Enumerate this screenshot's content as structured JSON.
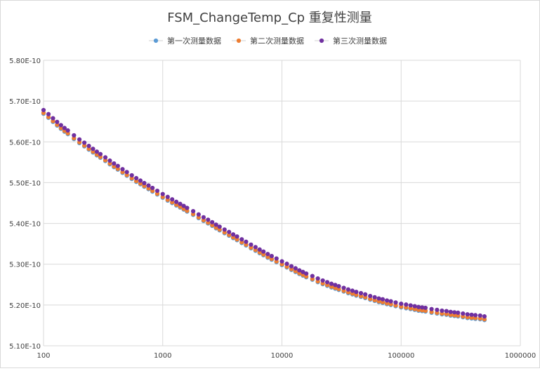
{
  "chart_data": {
    "type": "scatter",
    "title": "FSM_ChangeTemp_Cp 重复性测量",
    "xscale": "log",
    "xlim": [
      100,
      1000000
    ],
    "ylim": [
      5.1e-10,
      5.8e-10
    ],
    "xticks": [
      "100",
      "1000",
      "10000",
      "100000",
      "1000000"
    ],
    "yticks": [
      "5.10E-10",
      "5.20E-10",
      "5.30E-10",
      "5.40E-10",
      "5.50E-10",
      "5.60E-10",
      "5.70E-10",
      "5.80E-10"
    ],
    "grid": true,
    "legend_position": "top",
    "x": [
      100,
      110,
      120,
      130,
      140,
      150,
      160,
      180,
      200,
      220,
      240,
      260,
      280,
      300,
      330,
      360,
      390,
      420,
      460,
      500,
      550,
      600,
      650,
      700,
      760,
      820,
      900,
      1000,
      1100,
      1200,
      1300,
      1400,
      1500,
      1600,
      1800,
      2000,
      2200,
      2400,
      2600,
      2800,
      3000,
      3300,
      3600,
      3900,
      4200,
      4600,
      5000,
      5500,
      6000,
      6500,
      7000,
      7600,
      8200,
      9000,
      10000,
      11000,
      12000,
      13000,
      14000,
      15000,
      16000,
      18000,
      20000,
      22000,
      24000,
      26000,
      28000,
      30000,
      33000,
      36000,
      39000,
      42000,
      46000,
      50000,
      55000,
      60000,
      65000,
      70000,
      76000,
      82000,
      90000,
      100000,
      110000,
      120000,
      130000,
      140000,
      150000,
      160000,
      180000,
      200000,
      220000,
      240000,
      260000,
      280000,
      300000,
      330000,
      360000,
      390000,
      420000,
      460000,
      500000
    ],
    "series": [
      {
        "name": "第一次测量数据",
        "color": "#5b9bd5",
        "values": [
          5.669e-10,
          5.659e-10,
          5.649e-10,
          5.64e-10,
          5.632e-10,
          5.625e-10,
          5.619e-10,
          5.607e-10,
          5.597e-10,
          5.589e-10,
          5.581e-10,
          5.574e-10,
          5.567e-10,
          5.561e-10,
          5.553e-10,
          5.545e-10,
          5.538e-10,
          5.532e-10,
          5.524e-10,
          5.517e-10,
          5.509e-10,
          5.502e-10,
          5.496e-10,
          5.49e-10,
          5.484e-10,
          5.478e-10,
          5.471e-10,
          5.463e-10,
          5.456e-10,
          5.45e-10,
          5.444e-10,
          5.439e-10,
          5.434e-10,
          5.429e-10,
          5.421e-10,
          5.413e-10,
          5.406e-10,
          5.4e-10,
          5.394e-10,
          5.388e-10,
          5.383e-10,
          5.376e-10,
          5.37e-10,
          5.364e-10,
          5.359e-10,
          5.352e-10,
          5.346e-10,
          5.339e-10,
          5.333e-10,
          5.327e-10,
          5.322e-10,
          5.316e-10,
          5.311e-10,
          5.305e-10,
          5.298e-10,
          5.292e-10,
          5.286e-10,
          5.281e-10,
          5.276e-10,
          5.272e-10,
          5.268e-10,
          5.262e-10,
          5.256e-10,
          5.251e-10,
          5.247e-10,
          5.243e-10,
          5.24e-10,
          5.237e-10,
          5.233e-10,
          5.229e-10,
          5.226e-10,
          5.223e-10,
          5.22e-10,
          5.217e-10,
          5.213e-10,
          5.21e-10,
          5.207e-10,
          5.205e-10,
          5.202e-10,
          5.2e-10,
          5.197e-10,
          5.194e-10,
          5.192e-10,
          5.19e-10,
          5.188e-10,
          5.186e-10,
          5.185e-10,
          5.184e-10,
          5.181e-10,
          5.179e-10,
          5.177e-10,
          5.176e-10,
          5.174e-10,
          5.173e-10,
          5.172e-10,
          5.17e-10,
          5.168e-10,
          5.167e-10,
          5.166e-10,
          5.165e-10,
          5.163e-10
        ]
      },
      {
        "name": "第二次测量数据",
        "color": "#ed7d31",
        "values": [
          5.671e-10,
          5.661e-10,
          5.651e-10,
          5.642e-10,
          5.634e-10,
          5.627e-10,
          5.621e-10,
          5.609e-10,
          5.599e-10,
          5.591e-10,
          5.583e-10,
          5.576e-10,
          5.569e-10,
          5.563e-10,
          5.555e-10,
          5.547e-10,
          5.54e-10,
          5.534e-10,
          5.526e-10,
          5.519e-10,
          5.511e-10,
          5.504e-10,
          5.498e-10,
          5.492e-10,
          5.486e-10,
          5.48e-10,
          5.473e-10,
          5.465e-10,
          5.458e-10,
          5.452e-10,
          5.446e-10,
          5.441e-10,
          5.436e-10,
          5.431e-10,
          5.423e-10,
          5.415e-10,
          5.408e-10,
          5.402e-10,
          5.396e-10,
          5.39e-10,
          5.385e-10,
          5.378e-10,
          5.372e-10,
          5.366e-10,
          5.361e-10,
          5.354e-10,
          5.348e-10,
          5.341e-10,
          5.335e-10,
          5.329e-10,
          5.324e-10,
          5.318e-10,
          5.313e-10,
          5.307e-10,
          5.3e-10,
          5.294e-10,
          5.288e-10,
          5.283e-10,
          5.278e-10,
          5.274e-10,
          5.27e-10,
          5.264e-10,
          5.258e-10,
          5.253e-10,
          5.249e-10,
          5.245e-10,
          5.242e-10,
          5.239e-10,
          5.235e-10,
          5.231e-10,
          5.228e-10,
          5.225e-10,
          5.222e-10,
          5.219e-10,
          5.215e-10,
          5.212e-10,
          5.209e-10,
          5.207e-10,
          5.204e-10,
          5.202e-10,
          5.199e-10,
          5.196e-10,
          5.194e-10,
          5.192e-10,
          5.19e-10,
          5.188e-10,
          5.187e-10,
          5.186e-10,
          5.183e-10,
          5.181e-10,
          5.179e-10,
          5.178e-10,
          5.176e-10,
          5.175e-10,
          5.174e-10,
          5.172e-10,
          5.17e-10,
          5.169e-10,
          5.168e-10,
          5.167e-10,
          5.165e-10
        ]
      },
      {
        "name": "第三次测量数据",
        "color": "#7030a0",
        "values": [
          5.678e-10,
          5.668e-10,
          5.658e-10,
          5.649e-10,
          5.641e-10,
          5.634e-10,
          5.628e-10,
          5.616e-10,
          5.606e-10,
          5.598e-10,
          5.59e-10,
          5.583e-10,
          5.576e-10,
          5.57e-10,
          5.562e-10,
          5.554e-10,
          5.547e-10,
          5.541e-10,
          5.533e-10,
          5.526e-10,
          5.518e-10,
          5.511e-10,
          5.505e-10,
          5.499e-10,
          5.493e-10,
          5.487e-10,
          5.48e-10,
          5.472e-10,
          5.465e-10,
          5.459e-10,
          5.453e-10,
          5.448e-10,
          5.443e-10,
          5.438e-10,
          5.43e-10,
          5.422e-10,
          5.415e-10,
          5.409e-10,
          5.403e-10,
          5.397e-10,
          5.392e-10,
          5.385e-10,
          5.379e-10,
          5.373e-10,
          5.368e-10,
          5.361e-10,
          5.355e-10,
          5.348e-10,
          5.342e-10,
          5.336e-10,
          5.331e-10,
          5.325e-10,
          5.32e-10,
          5.314e-10,
          5.307e-10,
          5.301e-10,
          5.295e-10,
          5.29e-10,
          5.285e-10,
          5.281e-10,
          5.277e-10,
          5.271e-10,
          5.265e-10,
          5.26e-10,
          5.256e-10,
          5.252e-10,
          5.249e-10,
          5.246e-10,
          5.242e-10,
          5.238e-10,
          5.235e-10,
          5.232e-10,
          5.229e-10,
          5.226e-10,
          5.222e-10,
          5.219e-10,
          5.216e-10,
          5.214e-10,
          5.211e-10,
          5.209e-10,
          5.206e-10,
          5.203e-10,
          5.201e-10,
          5.199e-10,
          5.197e-10,
          5.195e-10,
          5.194e-10,
          5.193e-10,
          5.19e-10,
          5.188e-10,
          5.186e-10,
          5.185e-10,
          5.183e-10,
          5.182e-10,
          5.181e-10,
          5.179e-10,
          5.177e-10,
          5.176e-10,
          5.175e-10,
          5.174e-10,
          5.172e-10
        ]
      }
    ]
  }
}
